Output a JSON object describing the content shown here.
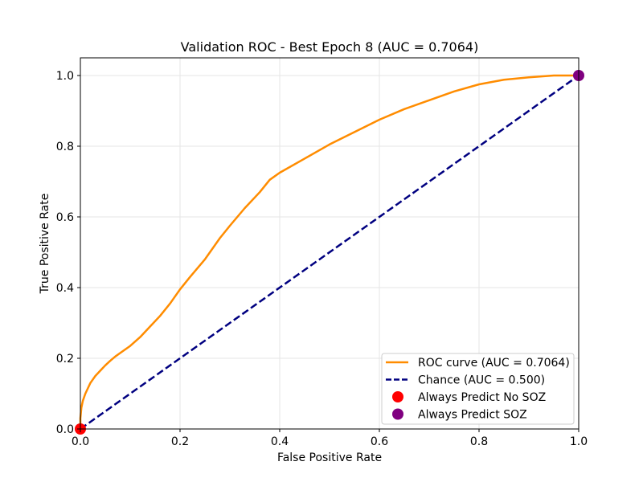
{
  "chart_data": {
    "type": "line",
    "title": "Validation ROC - Best Epoch 8 (AUC = 0.7064)",
    "xlabel": "False Positive Rate",
    "ylabel": "True Positive Rate",
    "xlim": [
      0.0,
      1.0
    ],
    "ylim": [
      0.0,
      1.05
    ],
    "grid": true,
    "legend_position": "lower-right",
    "x_ticks": [
      0.0,
      0.2,
      0.4,
      0.6,
      0.8,
      1.0
    ],
    "x_tick_labels": [
      "0.0",
      "0.2",
      "0.4",
      "0.6",
      "0.8",
      "1.0"
    ],
    "y_ticks": [
      0.0,
      0.2,
      0.4,
      0.6,
      0.8,
      1.0
    ],
    "y_tick_labels": [
      "0.0",
      "0.2",
      "0.4",
      "0.6",
      "0.8",
      "1.0"
    ],
    "series": [
      {
        "name": "ROC curve (AUC = 0.7064)",
        "style": "solid",
        "color": "#ff8c00",
        "x": [
          0.0,
          0.0,
          0.002,
          0.005,
          0.01,
          0.015,
          0.02,
          0.03,
          0.04,
          0.05,
          0.06,
          0.07,
          0.08,
          0.1,
          0.12,
          0.14,
          0.16,
          0.18,
          0.2,
          0.22,
          0.25,
          0.28,
          0.3,
          0.33,
          0.36,
          0.38,
          0.4,
          0.45,
          0.5,
          0.55,
          0.6,
          0.65,
          0.7,
          0.75,
          0.8,
          0.85,
          0.9,
          0.95,
          0.98,
          1.0
        ],
        "y": [
          0.0,
          0.03,
          0.06,
          0.08,
          0.1,
          0.115,
          0.13,
          0.15,
          0.165,
          0.18,
          0.193,
          0.205,
          0.215,
          0.235,
          0.26,
          0.29,
          0.32,
          0.355,
          0.395,
          0.43,
          0.48,
          0.54,
          0.575,
          0.625,
          0.67,
          0.705,
          0.725,
          0.765,
          0.805,
          0.84,
          0.875,
          0.905,
          0.93,
          0.955,
          0.975,
          0.988,
          0.995,
          1.0,
          1.0,
          1.0
        ]
      },
      {
        "name": "Chance (AUC = 0.500)",
        "style": "dashed",
        "color": "#000080",
        "x": [
          0.0,
          1.0
        ],
        "y": [
          0.0,
          1.0
        ]
      }
    ],
    "points": [
      {
        "name": "Always Predict No SOZ",
        "x": 0.0,
        "y": 0.0,
        "color": "#ff0000"
      },
      {
        "name": "Always Predict SOZ",
        "x": 1.0,
        "y": 1.0,
        "color": "#800080"
      }
    ]
  }
}
